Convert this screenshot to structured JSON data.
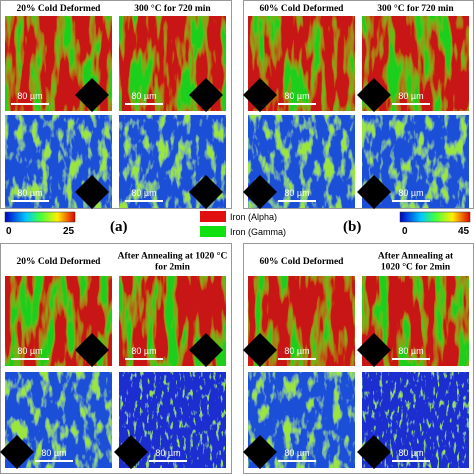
{
  "figure": {
    "groups": [
      {
        "headers": [
          [
            "20% Cold Deformed"
          ],
          [
            "300 °C for 720 min"
          ]
        ],
        "scale_bar": "80 µm"
      },
      {
        "headers": [
          [
            "60% Cold Deformed"
          ],
          [
            "300 °C for 720 min"
          ]
        ],
        "scale_bar": "80 µm"
      },
      {
        "headers": [
          [
            "20% Cold Deformed"
          ],
          [
            "After Annealing at 1020 °C",
            "for 2min"
          ]
        ],
        "scale_bar": "80 µm"
      },
      {
        "headers": [
          [
            "60% Cold Deformed"
          ],
          [
            "After Annealing at",
            "1020 °C for 2min"
          ]
        ],
        "scale_bar": "80 µm"
      }
    ],
    "labels": [
      "(a)",
      "(b)"
    ],
    "colorbars": [
      [
        "0",
        "25"
      ],
      [
        "0",
        "45"
      ]
    ],
    "legend": [
      "Iron (Alpha)",
      "Iron (Gamma)"
    ]
  }
}
